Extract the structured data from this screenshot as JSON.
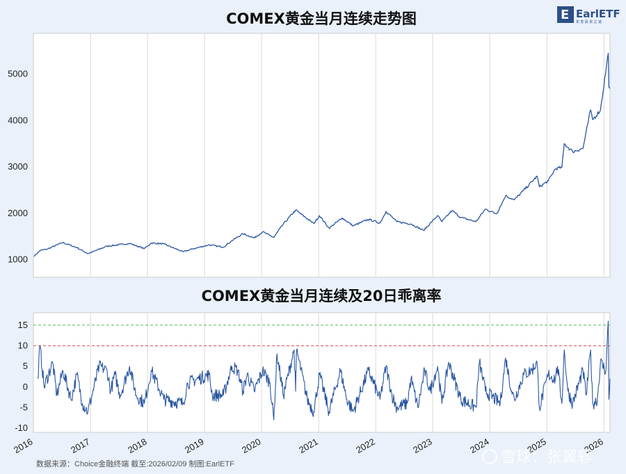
{
  "logo": {
    "brand": "EarlETF",
    "tagline": "年 安 投 资 之 道"
  },
  "footer": {
    "source": "数据来源：Choice金融终端 截至:2026/02/09 制图:EarlETF"
  },
  "watermark": {
    "text": "雪球：张翼轸"
  },
  "colors": {
    "line": "#2855a0",
    "ref_green": "#5cb85c",
    "ref_red": "#e05050",
    "grid": "#d8d8d8"
  },
  "chart_data": [
    {
      "type": "line",
      "title": "COMEX黄金当月连续走势图",
      "ylim": [
        620,
        5880
      ],
      "yticks": [
        1000,
        2000,
        3000,
        4000,
        5000
      ],
      "x_range": [
        "2016-01-01",
        "2026-02-09"
      ],
      "x_ticks": [
        "2016",
        "2017",
        "2018",
        "2019",
        "2020",
        "2021",
        "2022",
        "2023",
        "2024",
        "2025",
        "2026"
      ],
      "grid": "vertical",
      "series": [
        {
          "x": [
            "2016-01-04",
            "2016-02-15",
            "2016-04-01",
            "2016-07-06",
            "2016-10-06",
            "2016-12-15",
            "2017-04-15",
            "2017-09-08",
            "2017-12-12",
            "2018-01-25",
            "2018-04-15",
            "2018-08-16",
            "2018-10-15",
            "2019-01-30",
            "2019-05-02",
            "2019-06-25",
            "2019-09-04",
            "2019-11-15",
            "2020-01-08",
            "2020-03-19",
            "2020-05-15",
            "2020-08-06",
            "2020-11-30",
            "2021-01-06",
            "2021-03-08",
            "2021-06-01",
            "2021-08-09",
            "2021-11-16",
            "2022-01-28",
            "2022-03-08",
            "2022-05-16",
            "2022-08-15",
            "2022-11-03",
            "2023-02-01",
            "2023-03-01",
            "2023-05-04",
            "2023-06-30",
            "2023-10-05",
            "2023-12-04",
            "2024-02-14",
            "2024-04-12",
            "2024-06-07",
            "2024-08-01",
            "2024-10-30",
            "2024-11-14",
            "2025-01-10",
            "2025-02-24",
            "2025-04-07",
            "2025-04-22",
            "2025-06-15",
            "2025-08-20",
            "2025-10-08",
            "2025-10-21",
            "2025-12-10",
            "2026-01-29",
            "2026-02-02",
            "2026-02-09"
          ],
          "y": [
            1075,
            1200,
            1230,
            1370,
            1260,
            1130,
            1290,
            1350,
            1240,
            1360,
            1340,
            1170,
            1230,
            1320,
            1270,
            1410,
            1560,
            1470,
            1600,
            1480,
            1750,
            2070,
            1780,
            1950,
            1680,
            1900,
            1730,
            1870,
            1790,
            2040,
            1820,
            1770,
            1630,
            1950,
            1820,
            2060,
            1910,
            1820,
            2090,
            1990,
            2380,
            2290,
            2480,
            2800,
            2570,
            2700,
            2960,
            2990,
            3500,
            3330,
            3400,
            4230,
            4020,
            4230,
            5450,
            4720,
            4690
          ]
        }
      ]
    },
    {
      "type": "line",
      "title": "COMEX黄金当月连续及20日乖离率",
      "ylim": [
        -11,
        18
      ],
      "yticks": [
        -10,
        -5,
        0,
        5,
        10,
        15
      ],
      "reference_lines": [
        15,
        10
      ],
      "x_range": [
        "2016-01-01",
        "2026-02-09"
      ],
      "x_ticks": [
        "2016",
        "2017",
        "2018",
        "2019",
        "2020",
        "2021",
        "2022",
        "2023",
        "2024",
        "2025",
        "2026"
      ],
      "grid": "vertical",
      "series": [
        {
          "x": [
            "2016-01-29",
            "2016-02-12",
            "2016-03-10",
            "2016-05-03",
            "2016-05-30",
            "2016-07-08",
            "2016-08-30",
            "2016-10-06",
            "2016-11-10",
            "2016-12-15",
            "2017-02-25",
            "2017-04-17",
            "2017-05-10",
            "2017-06-06",
            "2017-07-10",
            "2017-09-08",
            "2017-10-20",
            "2017-12-12",
            "2018-01-25",
            "2018-04-15",
            "2018-08-16",
            "2018-09-15",
            "2019-01-30",
            "2019-02-20",
            "2019-05-02",
            "2019-06-25",
            "2019-08-01",
            "2019-09-04",
            "2019-10-01",
            "2019-11-15",
            "2020-01-08",
            "2020-02-24",
            "2020-03-19",
            "2020-04-09",
            "2020-05-20",
            "2020-07-27",
            "2020-08-06",
            "2020-08-12",
            "2020-10-20",
            "2020-11-30",
            "2021-01-06",
            "2021-03-08",
            "2021-05-20",
            "2021-06-30",
            "2021-08-09",
            "2021-11-16",
            "2022-01-28",
            "2022-03-08",
            "2022-04-15",
            "2022-05-16",
            "2022-07-21",
            "2022-08-15",
            "2022-09-28",
            "2022-11-10",
            "2022-12-15",
            "2023-02-01",
            "2023-03-01",
            "2023-04-13",
            "2023-06-30",
            "2023-10-05",
            "2023-10-27",
            "2023-12-04",
            "2024-03-08",
            "2024-04-12",
            "2024-05-20",
            "2024-06-07",
            "2024-08-05",
            "2024-09-25",
            "2024-10-30",
            "2024-11-14",
            "2025-01-10",
            "2025-02-24",
            "2025-03-10",
            "2025-04-07",
            "2025-04-22",
            "2025-05-15",
            "2025-06-15",
            "2025-08-20",
            "2025-09-10",
            "2025-10-08",
            "2025-10-21",
            "2025-11-20",
            "2025-12-10",
            "2026-01-14",
            "2026-01-29",
            "2026-02-02",
            "2026-02-09"
          ],
          "y": [
            2,
            10,
            0,
            6,
            -2,
            4,
            -3,
            3,
            -4,
            -6,
            5,
            4,
            -1,
            3,
            -2,
            5,
            -2,
            -4,
            4,
            -3,
            -4,
            1,
            3,
            -2,
            -2,
            5,
            4,
            -1,
            3,
            -1,
            4,
            1,
            -8,
            8,
            -2,
            9,
            -1,
            9,
            -3,
            -6,
            3,
            -6,
            4,
            -3,
            -6,
            4,
            -3,
            5,
            -2,
            -5,
            -4,
            2,
            -5,
            4,
            -1,
            5,
            -4,
            6,
            -3,
            -5,
            6,
            -1,
            -4,
            7,
            -1,
            -3,
            3,
            4,
            6,
            -5,
            3,
            2,
            5,
            -4,
            9,
            -1,
            -4,
            4,
            -2,
            9,
            -4,
            -3,
            6,
            4,
            16,
            -3,
            2
          ]
        }
      ]
    }
  ]
}
